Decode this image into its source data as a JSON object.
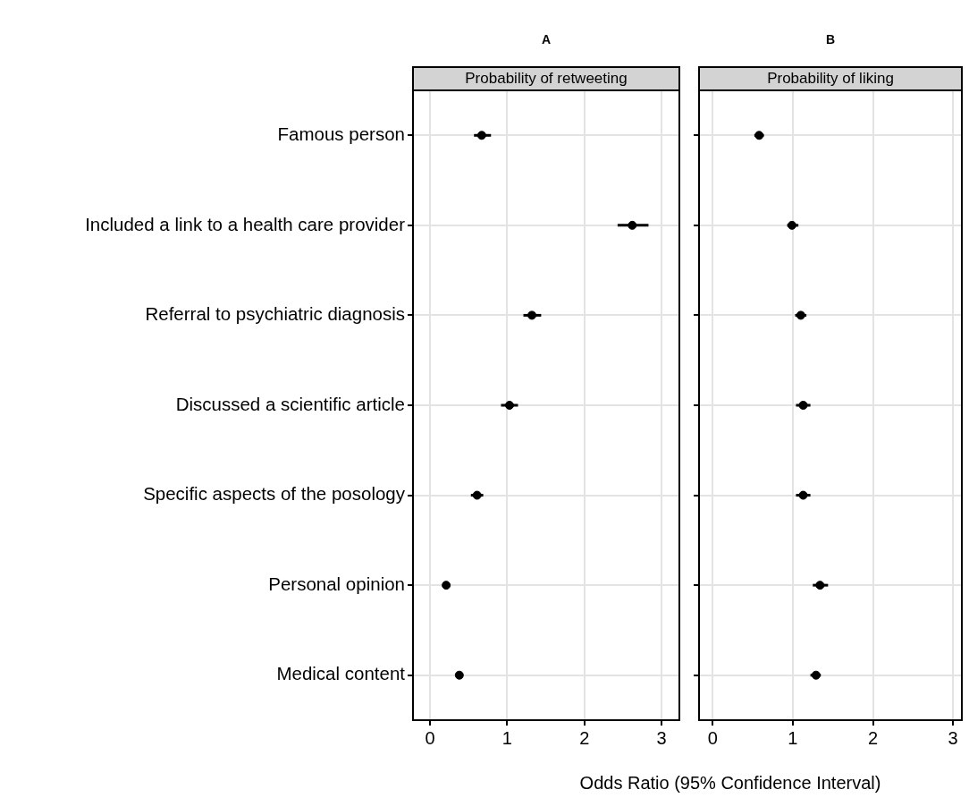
{
  "chart_data": [
    {
      "type": "scatter",
      "title": "A",
      "subtitle": "Probability of retweeting",
      "orientation": "horizontal",
      "categories": [
        "Famous person",
        "Included a link to a health care provider",
        "Referral to psychiatric diagnosis",
        "Discussed a scientific article",
        "Specific aspects of the posology",
        "Personal opinion",
        "Medical content"
      ],
      "series": [
        {
          "color": "#000000",
          "values": [
            0.67,
            2.62,
            1.32,
            1.03,
            0.61,
            0.21,
            0.38
          ],
          "errors": [
            [
              0.57,
              0.79
            ],
            [
              2.43,
              2.83
            ],
            [
              1.21,
              1.44
            ],
            [
              0.92,
              1.14
            ],
            [
              0.53,
              0.69
            ],
            [
              0.19,
              0.23
            ],
            [
              0.36,
              0.4
            ]
          ]
        }
      ],
      "xlim": [
        -0.22,
        3.23
      ],
      "xticks": [
        0,
        1,
        2,
        3
      ],
      "grid": true,
      "marker": "circle"
    },
    {
      "type": "scatter",
      "title": "B",
      "subtitle": "Probability of liking",
      "orientation": "horizontal",
      "xlabel": "Odds Ratio (95% Confidence Interval)",
      "tick_labels": "x",
      "categories": [
        null,
        null,
        null,
        null,
        null,
        null,
        null
      ],
      "series": [
        {
          "color": "#000000",
          "values": [
            0.58,
            0.99,
            1.1,
            1.13,
            1.13,
            1.34,
            1.29
          ],
          "errors": [
            [
              0.52,
              0.64
            ],
            [
              0.93,
              1.07
            ],
            [
              1.03,
              1.17
            ],
            [
              1.04,
              1.22
            ],
            [
              1.04,
              1.22
            ],
            [
              1.25,
              1.44
            ],
            [
              1.22,
              1.35
            ]
          ]
        }
      ],
      "xlim": [
        -0.17,
        3.11
      ],
      "xticks": [
        0,
        1,
        2,
        3
      ],
      "grid": true,
      "marker": "circle"
    }
  ]
}
